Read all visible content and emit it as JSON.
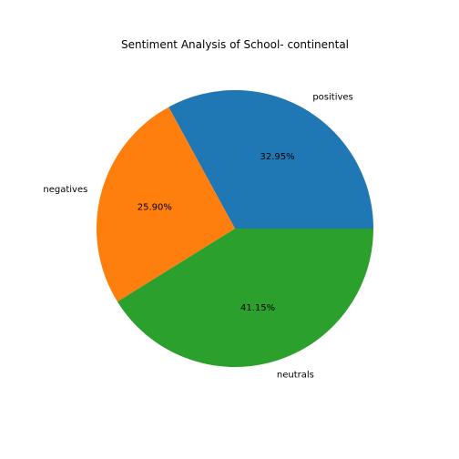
{
  "chart_data": {
    "type": "pie",
    "title": "Sentiment Analysis of School- continental",
    "slices": [
      {
        "label": "positives",
        "value": 32.95,
        "value_label": "32.95%",
        "color": "#1f77b4"
      },
      {
        "label": "negatives",
        "value": 25.9,
        "value_label": "25.90%",
        "color": "#ff7f0e"
      },
      {
        "label": "neutrals",
        "value": 41.15,
        "value_label": "41.15%",
        "color": "#2ca02c"
      }
    ],
    "start_angle_deg": 0,
    "direction": "counterclockwise",
    "legend": "none"
  }
}
